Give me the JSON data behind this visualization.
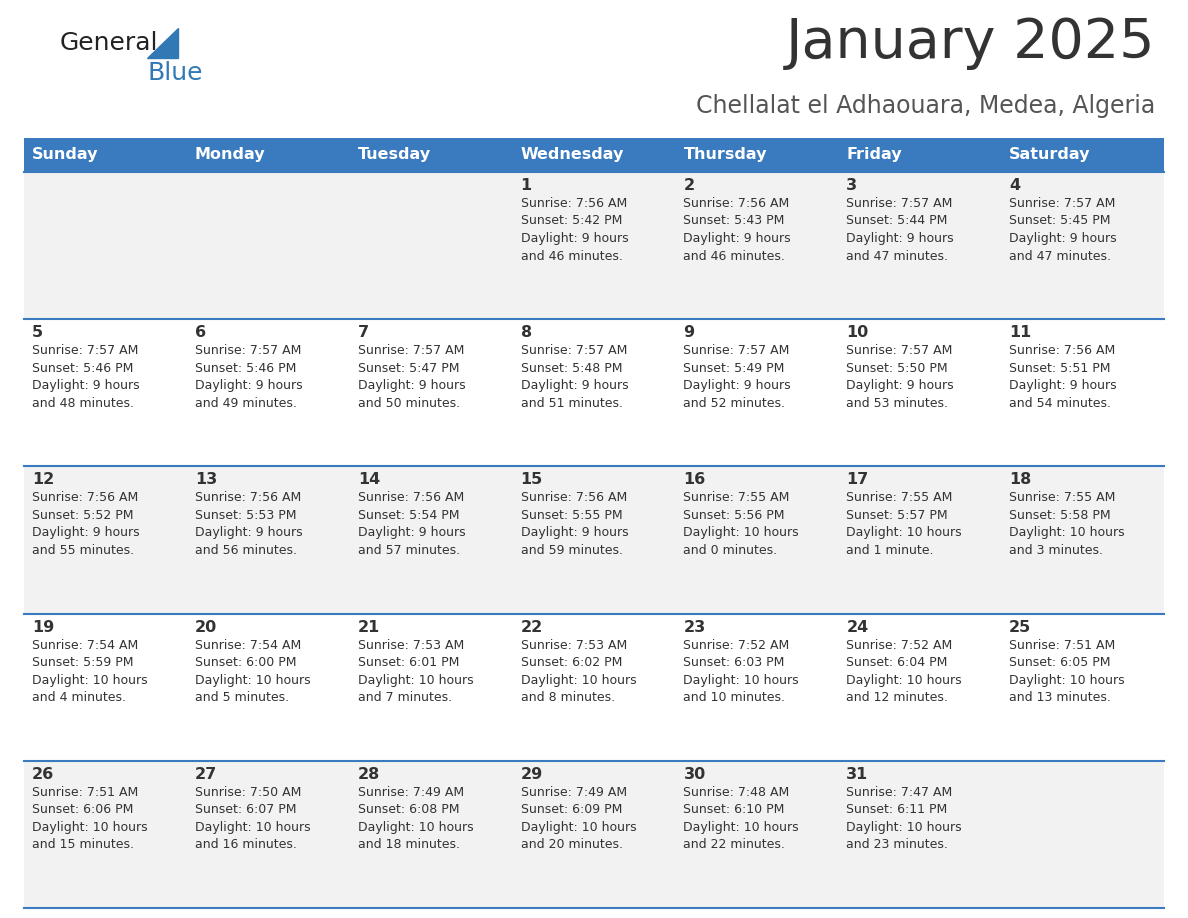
{
  "title": "January 2025",
  "subtitle": "Chellalat el Adhaouara, Medea, Algeria",
  "header_bg_color": "#3a7bbf",
  "header_text_color": "#ffffff",
  "odd_row_bg": "#f2f2f2",
  "even_row_bg": "#ffffff",
  "border_color": "#3a7bbf",
  "day_headers": [
    "Sunday",
    "Monday",
    "Tuesday",
    "Wednesday",
    "Thursday",
    "Friday",
    "Saturday"
  ],
  "title_color": "#333333",
  "subtitle_color": "#555555",
  "cell_text_color": "#333333",
  "day_num_color": "#333333",
  "logo_general_color": "#222222",
  "logo_blue_color": "#3179b5",
  "logo_triangle_color": "#3179b5",
  "calendar": [
    [
      {
        "day": "",
        "info": ""
      },
      {
        "day": "",
        "info": ""
      },
      {
        "day": "",
        "info": ""
      },
      {
        "day": "1",
        "info": "Sunrise: 7:56 AM\nSunset: 5:42 PM\nDaylight: 9 hours\nand 46 minutes."
      },
      {
        "day": "2",
        "info": "Sunrise: 7:56 AM\nSunset: 5:43 PM\nDaylight: 9 hours\nand 46 minutes."
      },
      {
        "day": "3",
        "info": "Sunrise: 7:57 AM\nSunset: 5:44 PM\nDaylight: 9 hours\nand 47 minutes."
      },
      {
        "day": "4",
        "info": "Sunrise: 7:57 AM\nSunset: 5:45 PM\nDaylight: 9 hours\nand 47 minutes."
      }
    ],
    [
      {
        "day": "5",
        "info": "Sunrise: 7:57 AM\nSunset: 5:46 PM\nDaylight: 9 hours\nand 48 minutes."
      },
      {
        "day": "6",
        "info": "Sunrise: 7:57 AM\nSunset: 5:46 PM\nDaylight: 9 hours\nand 49 minutes."
      },
      {
        "day": "7",
        "info": "Sunrise: 7:57 AM\nSunset: 5:47 PM\nDaylight: 9 hours\nand 50 minutes."
      },
      {
        "day": "8",
        "info": "Sunrise: 7:57 AM\nSunset: 5:48 PM\nDaylight: 9 hours\nand 51 minutes."
      },
      {
        "day": "9",
        "info": "Sunrise: 7:57 AM\nSunset: 5:49 PM\nDaylight: 9 hours\nand 52 minutes."
      },
      {
        "day": "10",
        "info": "Sunrise: 7:57 AM\nSunset: 5:50 PM\nDaylight: 9 hours\nand 53 minutes."
      },
      {
        "day": "11",
        "info": "Sunrise: 7:56 AM\nSunset: 5:51 PM\nDaylight: 9 hours\nand 54 minutes."
      }
    ],
    [
      {
        "day": "12",
        "info": "Sunrise: 7:56 AM\nSunset: 5:52 PM\nDaylight: 9 hours\nand 55 minutes."
      },
      {
        "day": "13",
        "info": "Sunrise: 7:56 AM\nSunset: 5:53 PM\nDaylight: 9 hours\nand 56 minutes."
      },
      {
        "day": "14",
        "info": "Sunrise: 7:56 AM\nSunset: 5:54 PM\nDaylight: 9 hours\nand 57 minutes."
      },
      {
        "day": "15",
        "info": "Sunrise: 7:56 AM\nSunset: 5:55 PM\nDaylight: 9 hours\nand 59 minutes."
      },
      {
        "day": "16",
        "info": "Sunrise: 7:55 AM\nSunset: 5:56 PM\nDaylight: 10 hours\nand 0 minutes."
      },
      {
        "day": "17",
        "info": "Sunrise: 7:55 AM\nSunset: 5:57 PM\nDaylight: 10 hours\nand 1 minute."
      },
      {
        "day": "18",
        "info": "Sunrise: 7:55 AM\nSunset: 5:58 PM\nDaylight: 10 hours\nand 3 minutes."
      }
    ],
    [
      {
        "day": "19",
        "info": "Sunrise: 7:54 AM\nSunset: 5:59 PM\nDaylight: 10 hours\nand 4 minutes."
      },
      {
        "day": "20",
        "info": "Sunrise: 7:54 AM\nSunset: 6:00 PM\nDaylight: 10 hours\nand 5 minutes."
      },
      {
        "day": "21",
        "info": "Sunrise: 7:53 AM\nSunset: 6:01 PM\nDaylight: 10 hours\nand 7 minutes."
      },
      {
        "day": "22",
        "info": "Sunrise: 7:53 AM\nSunset: 6:02 PM\nDaylight: 10 hours\nand 8 minutes."
      },
      {
        "day": "23",
        "info": "Sunrise: 7:52 AM\nSunset: 6:03 PM\nDaylight: 10 hours\nand 10 minutes."
      },
      {
        "day": "24",
        "info": "Sunrise: 7:52 AM\nSunset: 6:04 PM\nDaylight: 10 hours\nand 12 minutes."
      },
      {
        "day": "25",
        "info": "Sunrise: 7:51 AM\nSunset: 6:05 PM\nDaylight: 10 hours\nand 13 minutes."
      }
    ],
    [
      {
        "day": "26",
        "info": "Sunrise: 7:51 AM\nSunset: 6:06 PM\nDaylight: 10 hours\nand 15 minutes."
      },
      {
        "day": "27",
        "info": "Sunrise: 7:50 AM\nSunset: 6:07 PM\nDaylight: 10 hours\nand 16 minutes."
      },
      {
        "day": "28",
        "info": "Sunrise: 7:49 AM\nSunset: 6:08 PM\nDaylight: 10 hours\nand 18 minutes."
      },
      {
        "day": "29",
        "info": "Sunrise: 7:49 AM\nSunset: 6:09 PM\nDaylight: 10 hours\nand 20 minutes."
      },
      {
        "day": "30",
        "info": "Sunrise: 7:48 AM\nSunset: 6:10 PM\nDaylight: 10 hours\nand 22 minutes."
      },
      {
        "day": "31",
        "info": "Sunrise: 7:47 AM\nSunset: 6:11 PM\nDaylight: 10 hours\nand 23 minutes."
      },
      {
        "day": "",
        "info": ""
      }
    ]
  ]
}
